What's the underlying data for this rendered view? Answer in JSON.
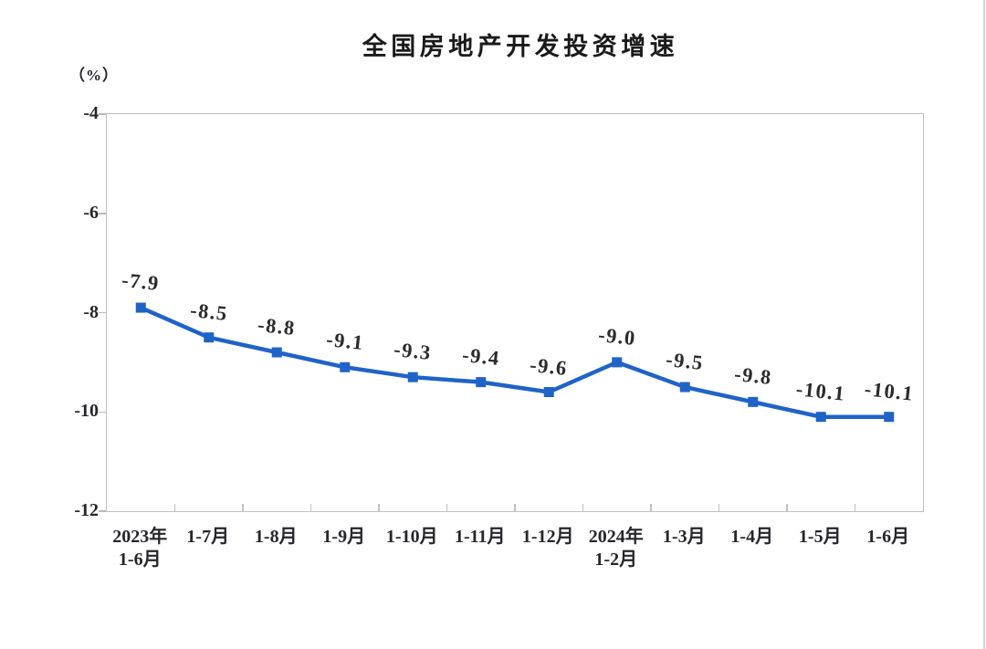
{
  "window": {
    "background_color": "#ffffff",
    "right_edge_color": "#d4d4d4"
  },
  "chart_data": {
    "type": "line",
    "title": "全国房地产开发投资增速",
    "unit_label": "（%）",
    "categories": [
      {
        "lines": [
          "2023年",
          "1-6月"
        ]
      },
      {
        "lines": [
          "1-7月"
        ]
      },
      {
        "lines": [
          "1-8月"
        ]
      },
      {
        "lines": [
          "1-9月"
        ]
      },
      {
        "lines": [
          "1-10月"
        ]
      },
      {
        "lines": [
          "1-11月"
        ]
      },
      {
        "lines": [
          "1-12月"
        ]
      },
      {
        "lines": [
          "2024年",
          "1-2月"
        ]
      },
      {
        "lines": [
          "1-3月"
        ]
      },
      {
        "lines": [
          "1-4月"
        ]
      },
      {
        "lines": [
          "1-5月"
        ]
      },
      {
        "lines": [
          "1-6月"
        ]
      }
    ],
    "values": [
      -7.9,
      -8.5,
      -8.8,
      -9.1,
      -9.3,
      -9.4,
      -9.6,
      -9.0,
      -9.5,
      -9.8,
      -10.1,
      -10.1
    ],
    "data_labels": [
      "-7.9",
      "-8.5",
      "-8.8",
      "-9.1",
      "-9.3",
      "-9.4",
      "-9.6",
      "-9.0",
      "-9.5",
      "-9.8",
      "-10.1",
      "-10.1"
    ],
    "ylim": [
      -12,
      -4
    ],
    "yticks": [
      "-4",
      "-6",
      "-8",
      "-10",
      "-12"
    ],
    "grid": false,
    "legend_position": "none",
    "line_color": "#1F63C8",
    "marker": "square",
    "axis_color": "#c0c0c0",
    "text_color": "#26262b"
  }
}
